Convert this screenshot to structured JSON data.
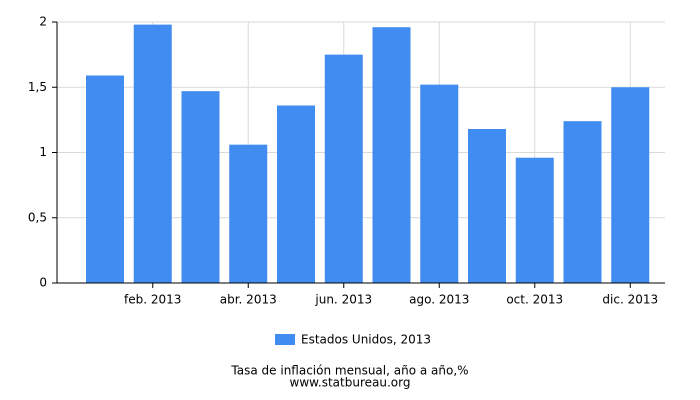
{
  "chart_data": {
    "type": "bar",
    "title": "Tasa de inflación mensual, año a año,%",
    "source": "www.statbureau.org",
    "categories": [
      null,
      "feb. 2013",
      null,
      "abr. 2013",
      null,
      "jun. 2013",
      null,
      "ago. 2013",
      null,
      "oct. 2013",
      null,
      "dic. 2013"
    ],
    "series": [
      {
        "name": "Estados Unidos, 2013",
        "color": "#418cf0",
        "values": [
          1.59,
          1.98,
          1.47,
          1.06,
          1.36,
          1.75,
          1.96,
          1.52,
          1.18,
          0.96,
          1.24,
          1.5
        ]
      }
    ],
    "ylim": [
      0,
      2
    ],
    "yticks": [
      0,
      {
        "value": 0.5,
        "label": "0,5"
      },
      1,
      {
        "value": 1.5,
        "label": "1,5"
      },
      2
    ],
    "grid": true
  }
}
